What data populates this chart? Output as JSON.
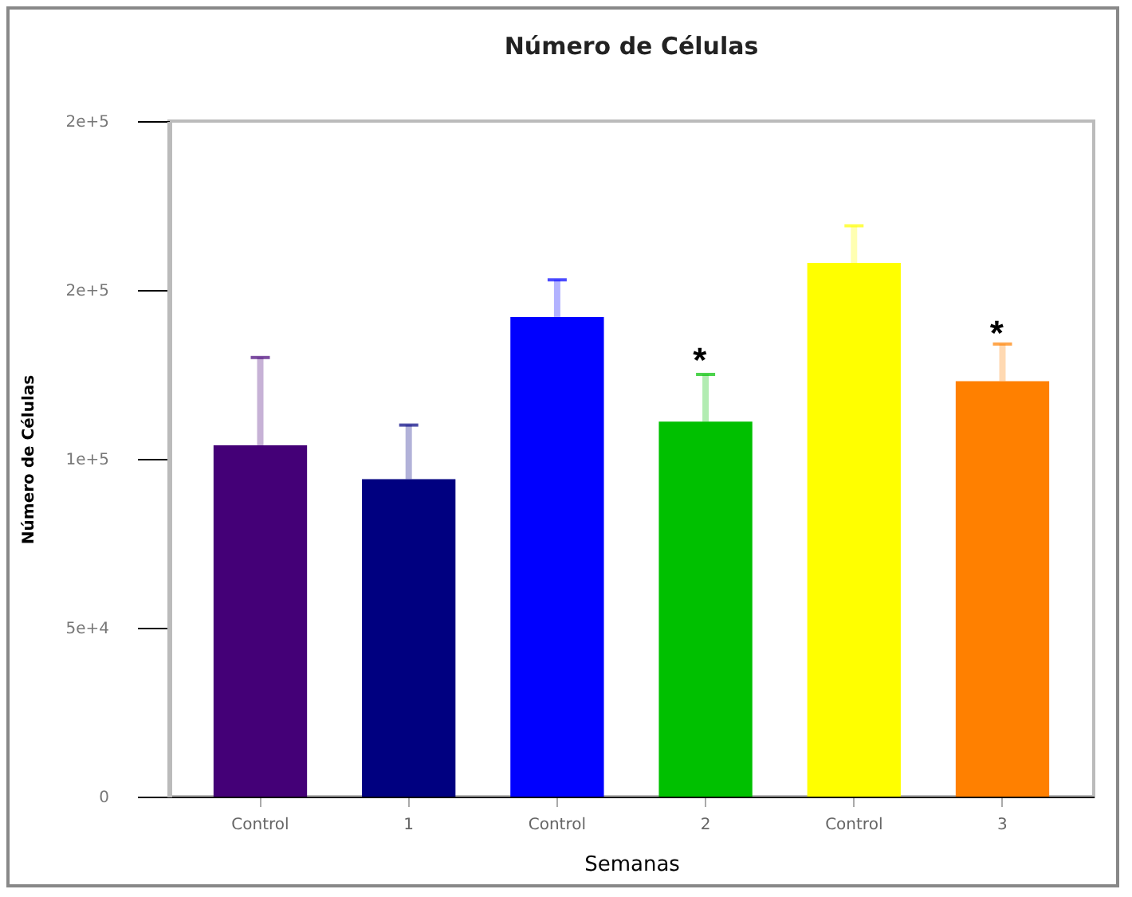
{
  "chart_data": {
    "type": "bar",
    "title": "Número de Células",
    "xlabel": "Semanas",
    "ylabel": "Número de Células",
    "categories": [
      "Control",
      "1",
      "Control",
      "2",
      "Control",
      "3"
    ],
    "values": [
      104000,
      94000,
      142000,
      111000,
      158000,
      123000
    ],
    "colors": [
      "#440077",
      "#000080",
      "#0000ff",
      "#00c000",
      "#ffff00",
      "#ff8000"
    ],
    "errors": [
      [
        104000,
        130000
      ],
      [
        94000,
        110000
      ],
      [
        142000,
        153000
      ],
      [
        111000,
        125000
      ],
      [
        158000,
        169000
      ],
      [
        123000,
        134000
      ]
    ],
    "ylim": [
      0,
      200000
    ],
    "yticks": [
      0,
      {
        "value": 50000,
        "label": "5e+4"
      },
      {
        "value": 100000,
        "label": "1e+5"
      },
      {
        "value": 150000,
        "label": "2e+5"
      },
      {
        "value": 200000,
        "label": "2e+5"
      }
    ],
    "annotations": [
      "*",
      "*"
    ],
    "grid": false,
    "legend": false
  }
}
